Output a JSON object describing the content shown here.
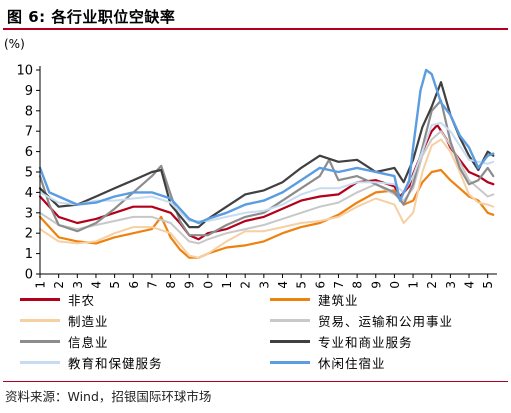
{
  "header": {
    "title": "图 6: 各行业职位空缺率"
  },
  "chart_data": {
    "type": "line",
    "title": "",
    "ylabel": "(%)",
    "xlabel": "",
    "ylim": [
      0,
      10
    ],
    "yticks": [
      "0",
      "1",
      "2",
      "3",
      "4",
      "5",
      "6",
      "7",
      "8",
      "9",
      "10"
    ],
    "xlim": [
      2001,
      2025.5
    ],
    "xticks": [
      "2001",
      "2002",
      "2003",
      "2004",
      "2005",
      "2006",
      "2007",
      "2008",
      "2009",
      "2010",
      "2011",
      "2012",
      "2013",
      "2014",
      "2015",
      "2016",
      "2017",
      "2018",
      "2019",
      "2020",
      "2021",
      "2022",
      "2023",
      "2024",
      "2025"
    ],
    "grid": false,
    "legend_position": "bottom",
    "series": [
      {
        "name": "非农",
        "color": "#b3001b",
        "width": 2.2,
        "x": [
          2001,
          2002,
          2003,
          2004,
          2005,
          2006,
          2007,
          2008,
          2008.5,
          2009,
          2009.5,
          2010,
          2011,
          2012,
          2013,
          2014,
          2015,
          2016,
          2017,
          2018,
          2019,
          2020,
          2020.3,
          2020.8,
          2021,
          2021.5,
          2022,
          2022.3,
          2022.8,
          2023,
          2023.5,
          2024,
          2024.5,
          2025,
          2025.3
        ],
        "y": [
          3.8,
          2.8,
          2.5,
          2.7,
          3.0,
          3.3,
          3.3,
          3.0,
          2.5,
          1.9,
          1.7,
          2.0,
          2.2,
          2.6,
          2.8,
          3.2,
          3.6,
          3.8,
          3.9,
          4.5,
          4.6,
          4.3,
          3.8,
          4.3,
          4.9,
          6.0,
          7.0,
          7.3,
          6.6,
          6.2,
          5.6,
          5.0,
          4.8,
          4.5,
          4.4
        ]
      },
      {
        "name": "建筑业",
        "color": "#ee8211",
        "width": 2.2,
        "x": [
          2001,
          2002,
          2003,
          2004,
          2005,
          2006,
          2007,
          2007.5,
          2008,
          2008.5,
          2009,
          2009.5,
          2010,
          2011,
          2012,
          2013,
          2014,
          2015,
          2016,
          2017,
          2018,
          2019,
          2020,
          2020.5,
          2021,
          2021.5,
          2022,
          2022.5,
          2023,
          2023.5,
          2024,
          2024.5,
          2025,
          2025.3
        ],
        "y": [
          2.8,
          1.8,
          1.6,
          1.5,
          1.8,
          2.0,
          2.2,
          2.8,
          1.8,
          1.2,
          0.8,
          0.8,
          1.0,
          1.3,
          1.4,
          1.6,
          2.0,
          2.3,
          2.5,
          2.9,
          3.5,
          4.0,
          4.1,
          3.4,
          3.6,
          4.5,
          5.0,
          5.1,
          4.6,
          4.2,
          3.8,
          3.6,
          3.0,
          2.9
        ]
      },
      {
        "name": "制造业",
        "color": "#f6cfa2",
        "width": 2.0,
        "x": [
          2001,
          2002,
          2003,
          2004,
          2005,
          2006,
          2007,
          2008,
          2009,
          2009.5,
          2010,
          2011,
          2012,
          2013,
          2014,
          2015,
          2016,
          2017,
          2018,
          2019,
          2020,
          2020.5,
          2021,
          2021.5,
          2022,
          2022.5,
          2023,
          2023.5,
          2024,
          2024.5,
          2025,
          2025.3
        ],
        "y": [
          2.2,
          1.6,
          1.5,
          1.6,
          2.0,
          2.3,
          2.3,
          2.0,
          0.9,
          0.8,
          1.0,
          1.6,
          2.1,
          2.1,
          2.3,
          2.5,
          2.6,
          2.8,
          3.3,
          3.7,
          3.4,
          2.5,
          3.0,
          5.0,
          6.3,
          6.6,
          6.0,
          5.0,
          3.9,
          3.5,
          3.4,
          3.3
        ]
      },
      {
        "name": "贸易、运输和公用事业",
        "color": "#c8c8c8",
        "width": 2.0,
        "x": [
          2001,
          2002,
          2003,
          2004,
          2005,
          2006,
          2007,
          2008,
          2009,
          2009.5,
          2010,
          2011,
          2012,
          2013,
          2014,
          2015,
          2016,
          2017,
          2018,
          2019,
          2020,
          2020.5,
          2021,
          2021.5,
          2022,
          2022.5,
          2023,
          2023.5,
          2024,
          2024.5,
          2025,
          2025.3
        ],
        "y": [
          3.0,
          2.4,
          2.2,
          2.4,
          2.6,
          2.8,
          2.8,
          2.5,
          1.6,
          1.5,
          1.7,
          2.0,
          2.2,
          2.4,
          2.7,
          3.0,
          3.3,
          3.5,
          4.0,
          4.4,
          3.9,
          3.6,
          4.2,
          5.8,
          6.6,
          7.0,
          6.3,
          5.5,
          4.6,
          4.2,
          3.8,
          3.9
        ]
      },
      {
        "name": "信息业",
        "color": "#8c8c8c",
        "width": 2.2,
        "x": [
          2001,
          2001.5,
          2002,
          2003,
          2004,
          2005,
          2006,
          2007,
          2007.5,
          2008,
          2008.5,
          2009,
          2010,
          2011,
          2012,
          2013,
          2014,
          2015,
          2016,
          2016.5,
          2017,
          2018,
          2019,
          2020,
          2020.5,
          2021,
          2021.5,
          2022,
          2022.5,
          2023,
          2023.5,
          2024,
          2024.5,
          2025,
          2025.3
        ],
        "y": [
          4.8,
          3.4,
          2.4,
          2.1,
          2.5,
          3.2,
          4.0,
          4.8,
          5.3,
          3.9,
          2.6,
          1.9,
          1.9,
          2.4,
          2.8,
          3.0,
          3.6,
          4.2,
          4.8,
          5.6,
          4.6,
          4.8,
          4.4,
          4.0,
          3.4,
          4.4,
          6.2,
          8.0,
          8.5,
          6.5,
          5.2,
          4.4,
          4.6,
          5.2,
          4.8
        ]
      },
      {
        "name": "专业和商业服务",
        "color": "#404040",
        "width": 2.2,
        "x": [
          2001,
          2002,
          2003,
          2004,
          2005,
          2006,
          2007,
          2007.5,
          2008,
          2009,
          2009.5,
          2010,
          2011,
          2012,
          2013,
          2014,
          2015,
          2016,
          2017,
          2018,
          2019,
          2020,
          2020.5,
          2021,
          2021.5,
          2022,
          2022.5,
          2023,
          2023.5,
          2024,
          2024.5,
          2025,
          2025.3
        ],
        "y": [
          4.2,
          3.3,
          3.4,
          3.8,
          4.2,
          4.6,
          5.0,
          5.1,
          3.4,
          2.3,
          2.3,
          2.7,
          3.3,
          3.9,
          4.1,
          4.5,
          5.2,
          5.8,
          5.5,
          5.6,
          5.0,
          5.2,
          4.5,
          5.6,
          7.2,
          8.2,
          9.4,
          7.8,
          6.7,
          5.8,
          5.1,
          6.0,
          5.8
        ]
      },
      {
        "name": "教育和保健服务",
        "color": "#c7dcf1",
        "width": 2.0,
        "x": [
          2001,
          2002,
          2003,
          2004,
          2005,
          2006,
          2007,
          2008,
          2009,
          2010,
          2011,
          2012,
          2013,
          2014,
          2015,
          2016,
          2017,
          2018,
          2019,
          2020,
          2020.5,
          2021,
          2021.5,
          2022,
          2022.5,
          2023,
          2023.5,
          2024,
          2024.5,
          2025,
          2025.3
        ],
        "y": [
          4.0,
          3.5,
          3.4,
          3.6,
          3.6,
          3.7,
          3.8,
          3.5,
          2.6,
          2.6,
          2.8,
          3.0,
          3.1,
          3.4,
          3.9,
          4.2,
          4.2,
          4.5,
          4.5,
          4.4,
          4.0,
          4.8,
          6.0,
          7.3,
          7.4,
          7.0,
          6.3,
          5.6,
          5.5,
          5.4,
          5.5
        ]
      },
      {
        "name": "休闲住宿业",
        "color": "#5b9de0",
        "width": 2.4,
        "x": [
          2001,
          2001.5,
          2002,
          2003,
          2004,
          2005,
          2006,
          2007,
          2008,
          2009,
          2009.5,
          2010,
          2011,
          2012,
          2013,
          2014,
          2015,
          2016,
          2017,
          2018,
          2019,
          2020,
          2020.3,
          2020.8,
          2021,
          2021.4,
          2021.7,
          2022,
          2022.5,
          2023,
          2023.5,
          2024,
          2024.5,
          2025,
          2025.3
        ],
        "y": [
          5.2,
          4.0,
          3.8,
          3.4,
          3.5,
          3.8,
          4.0,
          4.0,
          3.7,
          2.7,
          2.5,
          2.7,
          3.0,
          3.4,
          3.6,
          4.0,
          4.6,
          5.2,
          5.0,
          5.2,
          5.0,
          4.8,
          3.6,
          4.6,
          6.2,
          9.0,
          10.0,
          9.8,
          8.4,
          7.8,
          6.8,
          6.2,
          5.2,
          5.8,
          5.9
        ]
      }
    ]
  },
  "source": {
    "text": "资料来源：Wind，招银国际环球市场"
  }
}
